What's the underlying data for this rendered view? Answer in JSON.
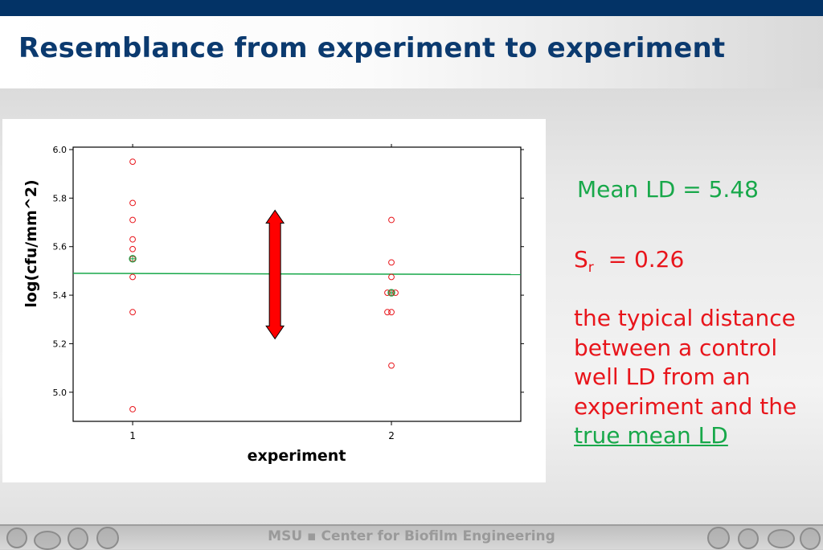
{
  "slide": {
    "title": "Resemblance from experiment to experiment",
    "mean_text": "Mean LD = 5.48",
    "sr_symbol": "S",
    "sr_subscript": "r",
    "sr_value": "= 0.26",
    "desc_part": "the typical distance between a control well LD from an experiment and the",
    "desc_link": "true mean LD",
    "footer": "MSU ▪ Center for Biofilm Engineering"
  },
  "colors": {
    "accent_navy": "#033366",
    "mean_green": "#18a84a",
    "point_red": "#e8151b",
    "arrow_red": "#ff0000"
  },
  "chart_data": {
    "type": "scatter",
    "xlabel": "experiment",
    "ylabel": "log(cfu/mm^2)",
    "xticks": [
      "1",
      "2"
    ],
    "yticks": [
      "5.0",
      "5.2",
      "5.4",
      "5.6",
      "5.8",
      "6.0"
    ],
    "xlim": [
      0.77,
      2.5
    ],
    "ylim": [
      4.88,
      6.01
    ],
    "series": [
      {
        "x": [
          1,
          1,
          1,
          1,
          1,
          1,
          1,
          1,
          1,
          2,
          2,
          2,
          2,
          2,
          2,
          2,
          2,
          2
        ],
        "y": [
          5.95,
          5.78,
          5.71,
          5.63,
          5.59,
          5.55,
          5.475,
          5.33,
          4.93,
          5.71,
          5.535,
          5.475,
          5.41,
          5.41,
          5.41,
          5.33,
          5.33,
          5.11
        ]
      }
    ],
    "group_means": [
      {
        "x": 1,
        "y": 5.55
      },
      {
        "x": 2,
        "y": 5.41
      }
    ],
    "mean_line": {
      "y_left": 5.49,
      "y_right": 5.485
    },
    "arrow": {
      "x": 1.55,
      "y_top": 5.75,
      "y_bottom": 5.22
    },
    "grid": false
  }
}
